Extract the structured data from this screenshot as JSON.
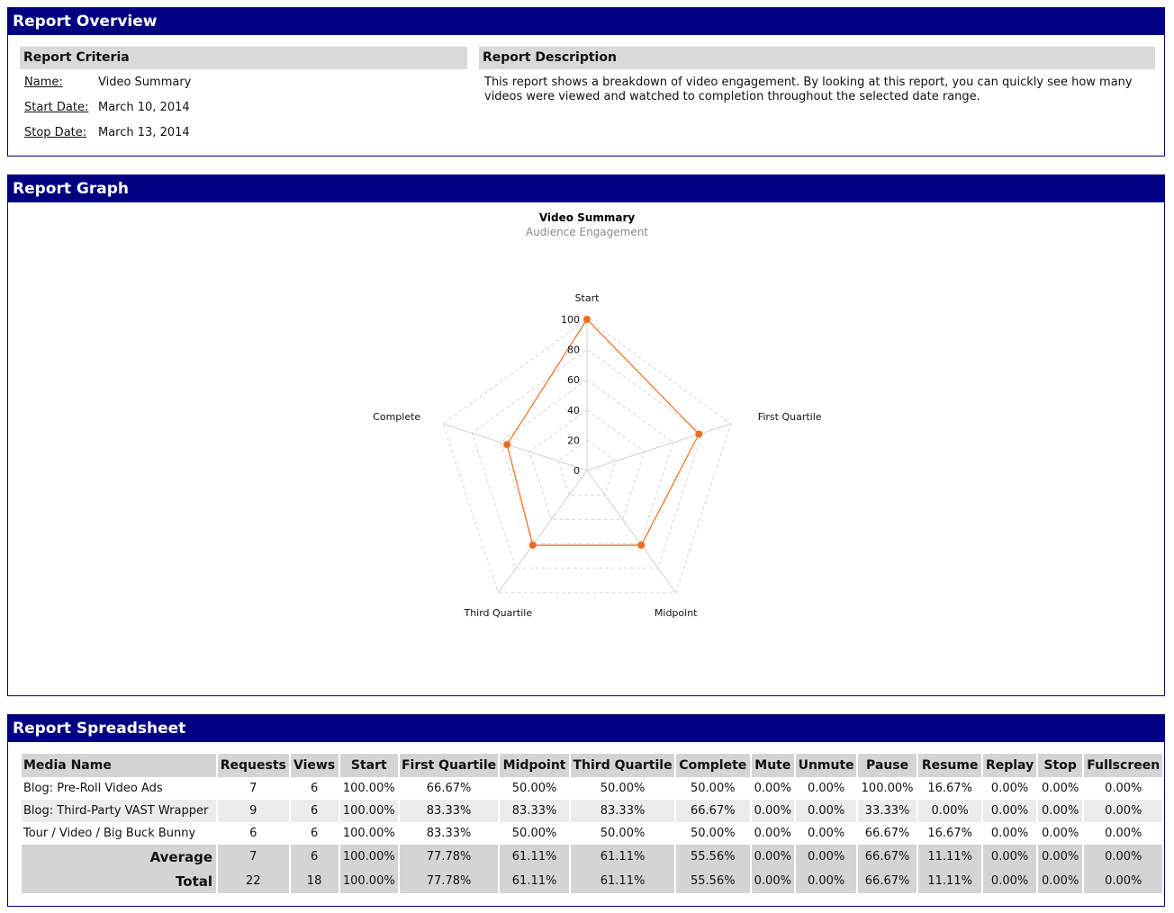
{
  "overview": {
    "title": "Report Overview",
    "criteria": {
      "title": "Report Criteria",
      "rows": [
        {
          "label": "Name",
          "value": "Video Summary"
        },
        {
          "label": "Start Date",
          "value": "March 10, 2014"
        },
        {
          "label": "Stop Date",
          "value": "March 13, 2014"
        }
      ]
    },
    "description": {
      "title": "Report Description",
      "text": "This report shows a breakdown of video engagement. By looking at this report, you can quickly see how many videos were viewed and watched to completion throughout the selected date range."
    }
  },
  "graph": {
    "title": "Report Graph"
  },
  "chart_data": {
    "type": "radar",
    "title": "Video Summary",
    "subtitle": "Audience Engagement",
    "categories": [
      "Start",
      "First Quartile",
      "Midpoint",
      "Third Quartile",
      "Complete"
    ],
    "series": [
      {
        "values": [
          100,
          77.78,
          61.11,
          61.11,
          55.56
        ],
        "color": "#f26b1d"
      }
    ],
    "ylim": [
      0,
      100
    ],
    "yticks": [
      0,
      20,
      40,
      60,
      80,
      100
    ],
    "grid": true
  },
  "sheet": {
    "title": "Report Spreadsheet",
    "columns": [
      "Media Name",
      "Requests",
      "Views",
      "Start",
      "First Quartile",
      "Midpoint",
      "Third Quartile",
      "Complete",
      "Mute",
      "Unmute",
      "Pause",
      "Resume",
      "Replay",
      "Stop",
      "Fullscreen"
    ],
    "rows": [
      [
        "Blog: Pre-Roll Video Ads",
        "7",
        "6",
        "100.00%",
        "66.67%",
        "50.00%",
        "50.00%",
        "50.00%",
        "0.00%",
        "0.00%",
        "100.00%",
        "16.67%",
        "0.00%",
        "0.00%",
        "0.00%"
      ],
      [
        "Blog: Third-Party VAST Wrapper",
        "9",
        "6",
        "100.00%",
        "83.33%",
        "83.33%",
        "83.33%",
        "66.67%",
        "0.00%",
        "0.00%",
        "33.33%",
        "0.00%",
        "0.00%",
        "0.00%",
        "0.00%"
      ],
      [
        "Tour / Video / Big Buck Bunny",
        "6",
        "6",
        "100.00%",
        "83.33%",
        "50.00%",
        "50.00%",
        "50.00%",
        "0.00%",
        "0.00%",
        "66.67%",
        "16.67%",
        "0.00%",
        "0.00%",
        "0.00%"
      ]
    ],
    "summary": [
      [
        "Average",
        "7",
        "6",
        "100.00%",
        "77.78%",
        "61.11%",
        "61.11%",
        "55.56%",
        "0.00%",
        "0.00%",
        "66.67%",
        "11.11%",
        "0.00%",
        "0.00%",
        "0.00%"
      ],
      [
        "Total",
        "22",
        "18",
        "100.00%",
        "77.78%",
        "61.11%",
        "61.11%",
        "55.56%",
        "0.00%",
        "0.00%",
        "66.67%",
        "11.11%",
        "0.00%",
        "0.00%",
        "0.00%"
      ]
    ]
  }
}
